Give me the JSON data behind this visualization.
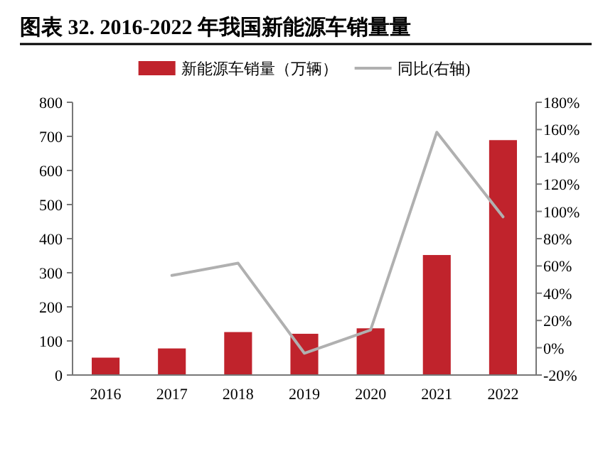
{
  "chart_data": {
    "type": "bar",
    "title": "图表 32. 2016-2022 年我国新能源车销量量",
    "categories": [
      "2016",
      "2017",
      "2018",
      "2019",
      "2020",
      "2021",
      "2022"
    ],
    "series": [
      {
        "name": "新能源车销量（万辆）",
        "color": "#c0232c",
        "values": [
          51,
          78,
          126,
          121,
          137,
          352,
          689
        ]
      },
      {
        "name": "同比(右轴)",
        "type": "line",
        "color": "#b0b0b0",
        "axis": "y2",
        "values": [
          null,
          53,
          62,
          -4,
          13,
          158,
          96
        ]
      }
    ],
    "ylim": [
      0,
      800
    ],
    "yticks": [
      0,
      100,
      200,
      300,
      400,
      500,
      600,
      700,
      800
    ],
    "y2lim": [
      -20,
      180
    ],
    "y2ticks": [
      {
        "value": -20,
        "label": "-20%"
      },
      {
        "value": 0,
        "label": "0%"
      },
      {
        "value": 20,
        "label": "20%"
      },
      {
        "value": 40,
        "label": "40%"
      },
      {
        "value": 60,
        "label": "60%"
      },
      {
        "value": 80,
        "label": "80%"
      },
      {
        "value": 100,
        "label": "100%"
      },
      {
        "value": 120,
        "label": "120%"
      },
      {
        "value": 140,
        "label": "140%"
      },
      {
        "value": 160,
        "label": "160%"
      },
      {
        "value": 180,
        "label": "180%"
      }
    ],
    "legend": "top",
    "grid": false
  }
}
